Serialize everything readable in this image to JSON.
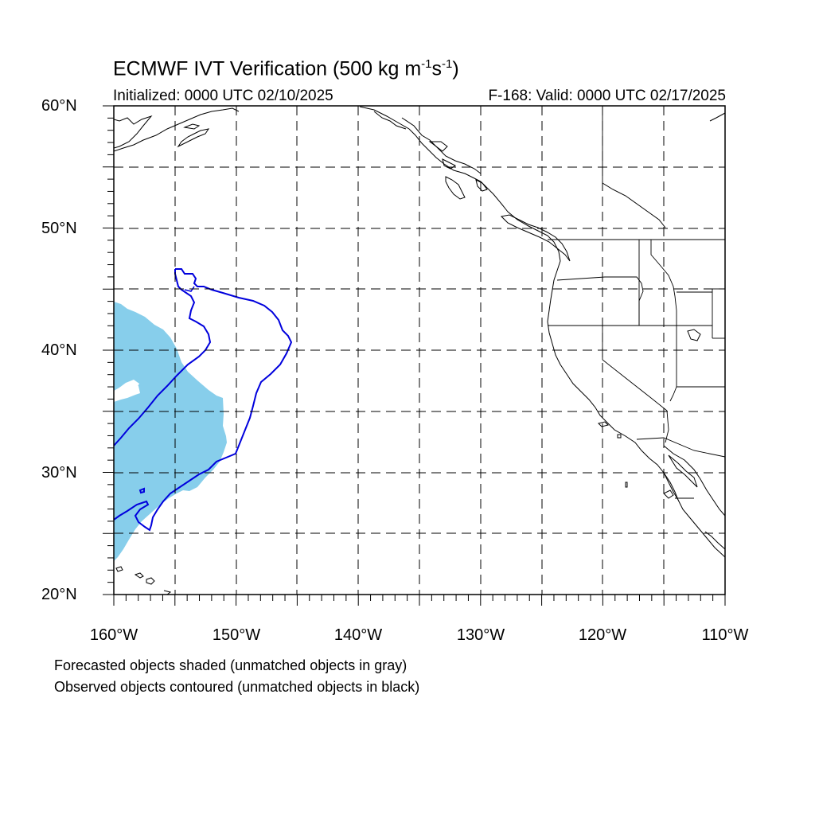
{
  "title": {
    "prefix": "ECMWF IVT Verification (500 kg m",
    "exp1": "-1",
    "mid": "s",
    "exp2": "-1",
    "suffix": ")"
  },
  "subtitle_left": "Initialized: 0000 UTC 02/10/2025",
  "subtitle_right": "F-168: Valid: 0000 UTC 02/17/2025",
  "lat_labels": [
    "60°N",
    "50°N",
    "40°N",
    "30°N",
    "20°N"
  ],
  "lon_labels": [
    "160°W",
    "150°W",
    "140°W",
    "130°W",
    "120°W",
    "110°W"
  ],
  "notes": [
    "Forecasted objects shaded (unmatched objects in gray)",
    "Observed objects contoured (unmatched objects in black)"
  ],
  "map_extent": {
    "lon_min": -160,
    "lon_max": -110,
    "lat_min": 20,
    "lat_max": 60
  },
  "colors": {
    "forecast_fill": "#87ceeb",
    "observed_contour": "#0000dd",
    "coastline": "#000000",
    "grid": "#000000"
  }
}
